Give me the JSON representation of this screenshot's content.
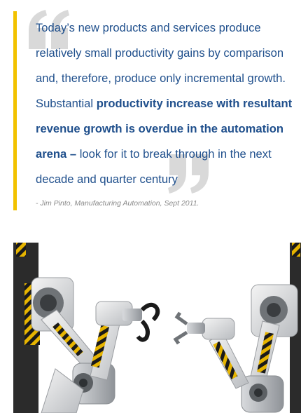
{
  "quote": {
    "text_part1": "Today’s new products and services produce relatively small productivity gains by comparison and, therefore, produce only incremental growth. Substantial ",
    "text_bold": "productivity increase with resultant revenue growth is overdue in the automation arena –",
    "text_part2": " look for it to break through in the next decade and quarter century",
    "attribution": "- Jim Pinto, Manufacturing Automation, Sept 2011.",
    "accent_color": "#f2c200",
    "text_color": "#1f4f8c",
    "open_mark_icon": "open-quote-icon",
    "close_mark_icon": "close-quote-icon"
  },
  "image": {
    "subject": "two-industrial-robot-arms-icon"
  }
}
